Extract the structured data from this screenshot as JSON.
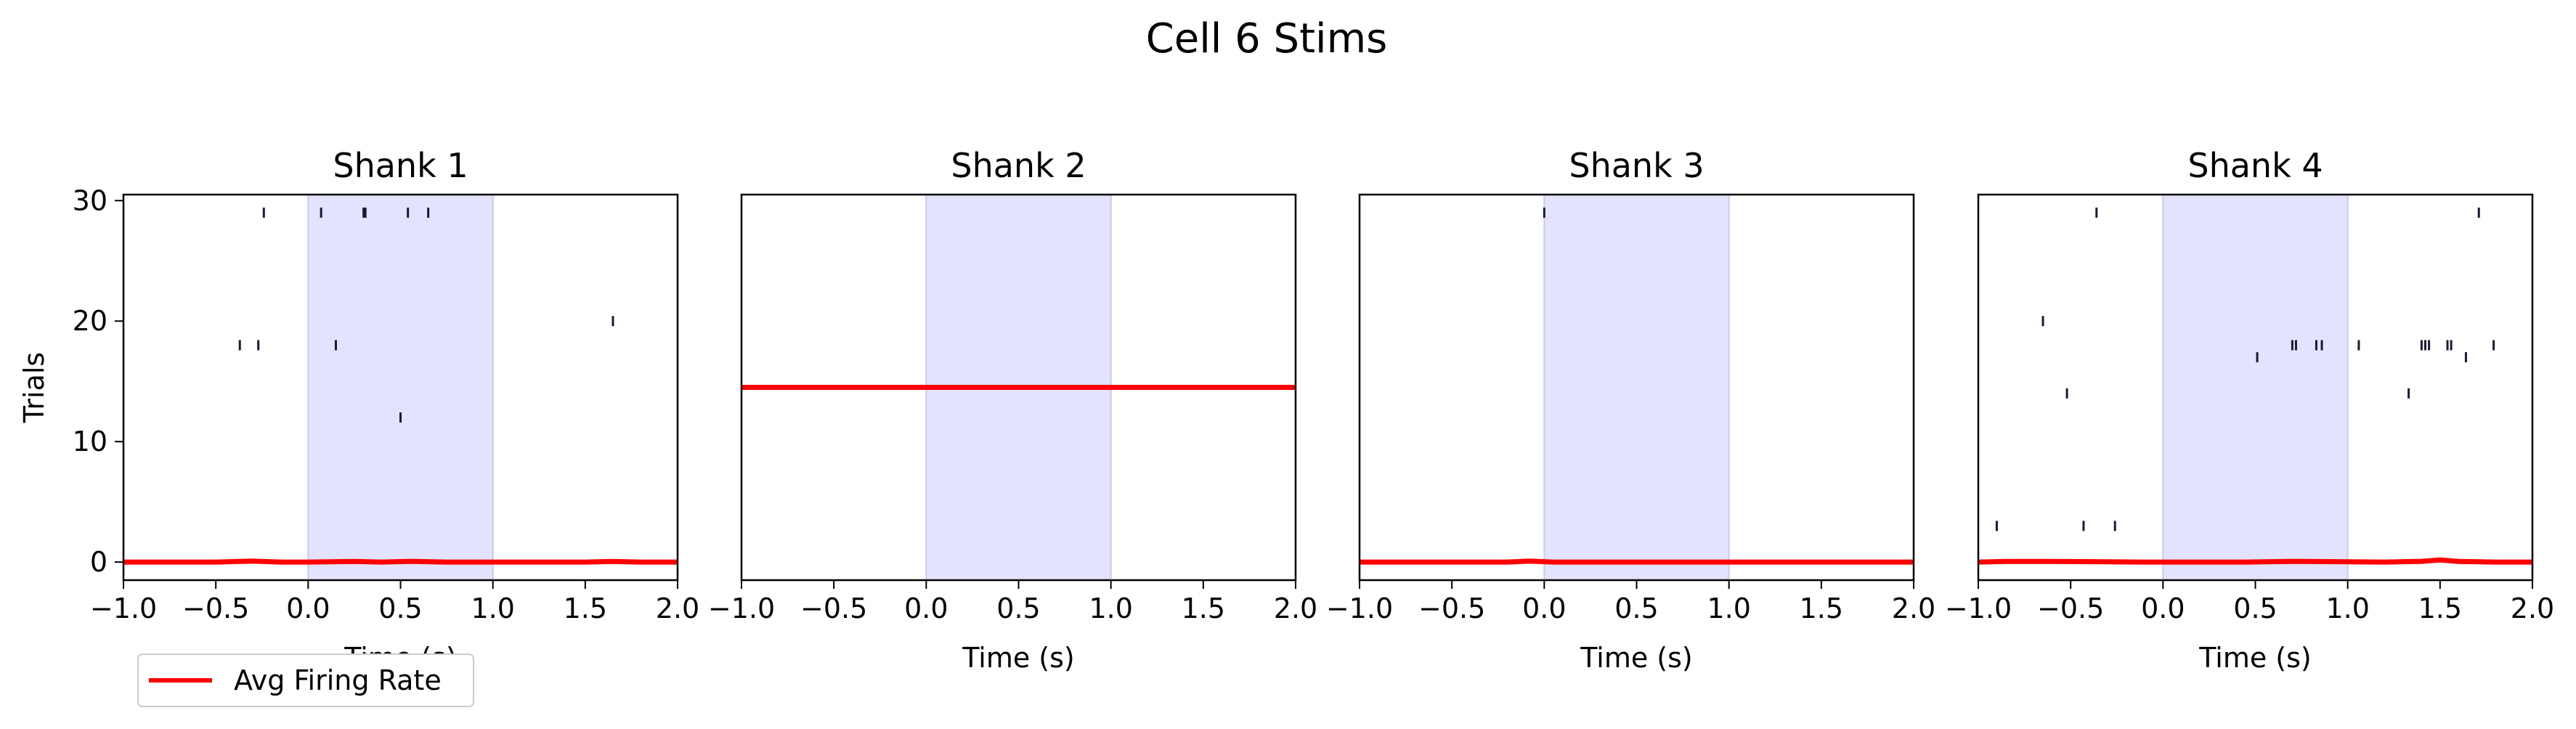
{
  "figure": {
    "suptitle": "Cell 6 Stims"
  },
  "legend": {
    "label": "Avg Firing Rate",
    "color": "#ff0000",
    "placement": "lower-left"
  },
  "colors": {
    "stim_window": "#e3e3fd",
    "stim_edge": "#c8c8f7",
    "spike": "#1a1a33",
    "rate_line": "#ff0000"
  },
  "chart_data": [
    {
      "type": "scatter",
      "title": "Shank 1",
      "xlabel": "Time (s)",
      "ylabel": "Trials",
      "xlim": [
        -1.0,
        2.0
      ],
      "ylim": [
        -1.5,
        30.5
      ],
      "xticks": [
        "−1.0",
        "−0.5",
        "0.0",
        "0.5",
        "1.0",
        "1.5",
        "2.0"
      ],
      "yticks": [
        "0",
        "10",
        "20",
        "30"
      ],
      "stim_window": [
        0.0,
        1.0
      ],
      "spikes": [
        {
          "x": -0.24,
          "y": 29
        },
        {
          "x": 0.07,
          "y": 29
        },
        {
          "x": 0.3,
          "y": 29
        },
        {
          "x": 0.31,
          "y": 29
        },
        {
          "x": 0.54,
          "y": 29
        },
        {
          "x": 0.65,
          "y": 29
        },
        {
          "x": 1.65,
          "y": 20
        },
        {
          "x": -0.37,
          "y": 18
        },
        {
          "x": -0.27,
          "y": 18
        },
        {
          "x": 0.15,
          "y": 18
        },
        {
          "x": 0.5,
          "y": 12
        }
      ],
      "rate": {
        "x": [
          -1.0,
          -0.5,
          -0.3,
          -0.15,
          0.0,
          0.25,
          0.4,
          0.55,
          0.75,
          1.0,
          1.5,
          1.65,
          1.8,
          2.0
        ],
        "y": [
          0,
          0,
          0.08,
          0,
          0,
          0.05,
          0,
          0.06,
          0,
          0,
          0,
          0.05,
          0,
          0
        ]
      }
    },
    {
      "type": "scatter",
      "title": "Shank 2",
      "xlabel": "Time (s)",
      "ylabel": "",
      "xlim": [
        -1.0,
        2.0
      ],
      "ylim": [
        -1.5,
        30.5
      ],
      "xticks": [
        "−1.0",
        "−0.5",
        "0.0",
        "0.5",
        "1.0",
        "1.5",
        "2.0"
      ],
      "yticks": [],
      "stim_window": [
        0.0,
        1.0
      ],
      "spikes": [],
      "rate": {
        "x": [
          -1.0,
          2.0
        ],
        "y": [
          14.5,
          14.5
        ]
      }
    },
    {
      "type": "scatter",
      "title": "Shank 3",
      "xlabel": "Time (s)",
      "ylabel": "",
      "xlim": [
        -1.0,
        2.0
      ],
      "ylim": [
        -1.5,
        30.5
      ],
      "xticks": [
        "−1.0",
        "−0.5",
        "0.0",
        "0.5",
        "1.0",
        "1.5",
        "2.0"
      ],
      "yticks": [],
      "stim_window": [
        0.0,
        1.0
      ],
      "spikes": [
        {
          "x": 0.0,
          "y": 29
        }
      ],
      "rate": {
        "x": [
          -1.0,
          -0.2,
          -0.08,
          0.05,
          2.0
        ],
        "y": [
          0,
          0,
          0.08,
          0,
          0
        ]
      }
    },
    {
      "type": "scatter",
      "title": "Shank 4",
      "xlabel": "Time (s)",
      "ylabel": "",
      "xlim": [
        -1.0,
        2.0
      ],
      "ylim": [
        -1.5,
        30.5
      ],
      "xticks": [
        "−1.0",
        "−0.5",
        "0.0",
        "0.5",
        "1.0",
        "1.5",
        "2.0"
      ],
      "yticks": [],
      "stim_window": [
        0.0,
        1.0
      ],
      "spikes": [
        {
          "x": -0.36,
          "y": 29
        },
        {
          "x": 1.71,
          "y": 29
        },
        {
          "x": -0.65,
          "y": 20
        },
        {
          "x": 0.7,
          "y": 18
        },
        {
          "x": 0.72,
          "y": 18
        },
        {
          "x": 0.83,
          "y": 18
        },
        {
          "x": 0.86,
          "y": 18
        },
        {
          "x": 1.06,
          "y": 18
        },
        {
          "x": 1.4,
          "y": 18
        },
        {
          "x": 1.42,
          "y": 18
        },
        {
          "x": 1.44,
          "y": 18
        },
        {
          "x": 1.54,
          "y": 18
        },
        {
          "x": 1.56,
          "y": 18
        },
        {
          "x": 1.79,
          "y": 18
        },
        {
          "x": 0.51,
          "y": 17
        },
        {
          "x": 1.64,
          "y": 17
        },
        {
          "x": -0.52,
          "y": 14
        },
        {
          "x": 1.33,
          "y": 14
        },
        {
          "x": -0.9,
          "y": 3
        },
        {
          "x": -0.43,
          "y": 3
        },
        {
          "x": -0.26,
          "y": 3
        }
      ],
      "rate": {
        "x": [
          -1.0,
          -0.85,
          -0.6,
          -0.35,
          -0.1,
          0.2,
          0.45,
          0.7,
          0.9,
          1.2,
          1.4,
          1.5,
          1.6,
          1.8,
          2.0
        ],
        "y": [
          0,
          0.05,
          0.05,
          0.03,
          0,
          0,
          0,
          0.06,
          0.04,
          0,
          0.06,
          0.18,
          0.05,
          0,
          0
        ]
      }
    }
  ]
}
